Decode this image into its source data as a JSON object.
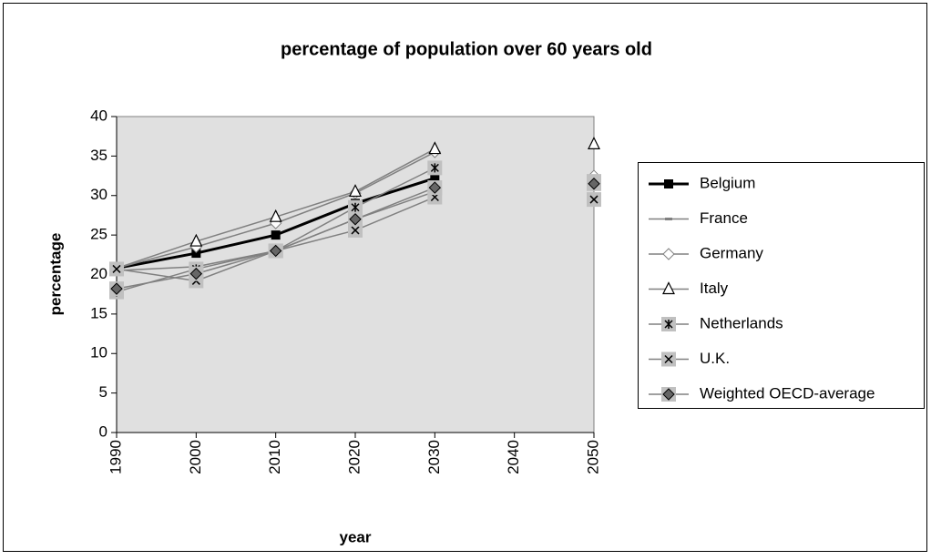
{
  "chart_data": {
    "type": "line",
    "title": "percentage of population over 60 years old",
    "x_label": "year",
    "y_label": "percentage",
    "categories": [
      "1990",
      "2000",
      "2010",
      "2020",
      "2030",
      "2040",
      "2050"
    ],
    "ylim": [
      0,
      40
    ],
    "yticks": [
      0,
      5,
      10,
      15,
      20,
      25,
      30,
      35,
      40
    ],
    "grid": false,
    "legend": "right",
    "plot_background": "#e0e0e0",
    "series": [
      {
        "name": "Belgium",
        "color": "#000000",
        "marker": "square",
        "values": [
          20.8,
          22.7,
          25,
          29,
          32.2,
          null,
          null
        ]
      },
      {
        "name": "France",
        "color": "#808080",
        "marker": "dash",
        "values": [
          20.5,
          21,
          23,
          27,
          30.5,
          null,
          null
        ]
      },
      {
        "name": "Germany",
        "color": "#808080",
        "marker": "diamond",
        "values": [
          20.8,
          23.5,
          26.5,
          30.3,
          35.5,
          null,
          32.5
        ]
      },
      {
        "name": "Italy",
        "color": "#808080",
        "marker": "triangle",
        "values": [
          20.8,
          24.2,
          27.3,
          30.5,
          35.9,
          null,
          36.5
        ]
      },
      {
        "name": "Netherlands",
        "color": "#808080",
        "marker": "star",
        "values": [
          17.8,
          20.7,
          23,
          28.5,
          33.5,
          null,
          31.8
        ]
      },
      {
        "name": "U.K.",
        "color": "#808080",
        "marker": "x",
        "values": [
          20.7,
          19.2,
          23,
          25.6,
          29.8,
          null,
          29.5
        ]
      },
      {
        "name": "Weighted OECD-average",
        "color": "#808080",
        "marker": "filled-diamond",
        "values": [
          18.2,
          20.1,
          23,
          27,
          31,
          null,
          31.5
        ]
      }
    ]
  }
}
